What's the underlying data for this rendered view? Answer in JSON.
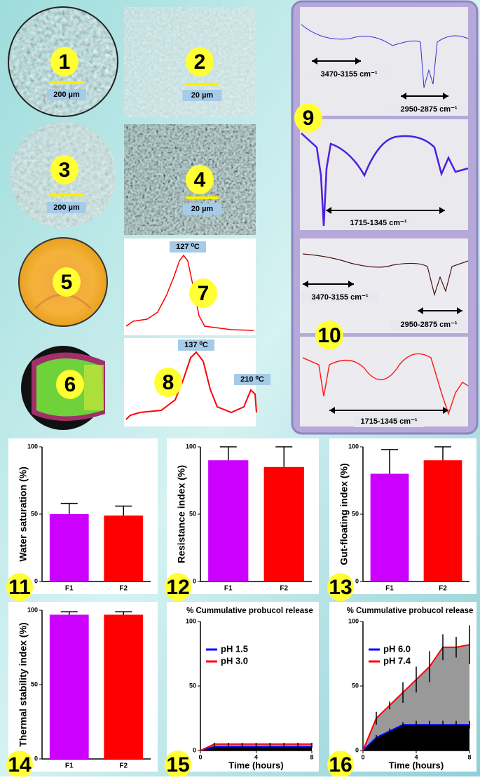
{
  "images": [
    {
      "label": "1",
      "scale": "200 µm"
    },
    {
      "label": "2",
      "scale": "20 µm"
    },
    {
      "label": "3",
      "scale": "200 µm"
    },
    {
      "label": "4",
      "scale": "20 µm"
    },
    {
      "label": "5"
    },
    {
      "label": "6"
    }
  ],
  "dsc": [
    {
      "label": "7",
      "peaks": [
        "127 ⁰C"
      ]
    },
    {
      "label": "8",
      "peaks": [
        "137 ⁰C",
        "210 ⁰C"
      ]
    }
  ],
  "ftir": [
    {
      "label": "9",
      "bands": [
        "3470-3155 cm⁻¹",
        "2950-2875 cm⁻¹",
        "1715-1345 cm⁻¹"
      ]
    },
    {
      "label": "10",
      "bands": [
        "3470-3155 cm⁻¹",
        "2950-2875 cm⁻¹",
        "1715-1345 cm⁻¹"
      ]
    }
  ],
  "chart_data": [
    {
      "type": "bar",
      "label": "11",
      "ylabel": "Water saturation (%)",
      "categories": [
        "F1",
        "F2"
      ],
      "values": [
        50,
        49
      ],
      "errors": [
        8,
        7
      ],
      "colors": [
        "#cc00ff",
        "#ff0000"
      ],
      "ylim": [
        0,
        100
      ],
      "yticks": [
        0,
        50,
        100
      ]
    },
    {
      "type": "bar",
      "label": "12",
      "ylabel": "Resistance index (%)",
      "categories": [
        "F1",
        "F2"
      ],
      "values": [
        90,
        85
      ],
      "errors": [
        10,
        15
      ],
      "colors": [
        "#cc00ff",
        "#ff0000"
      ],
      "ylim": [
        0,
        100
      ],
      "yticks": [
        0,
        50,
        100
      ]
    },
    {
      "type": "bar",
      "label": "13",
      "ylabel": "Gut-floating index (%)",
      "categories": [
        "F1",
        "F2"
      ],
      "values": [
        80,
        90
      ],
      "errors": [
        18,
        10
      ],
      "colors": [
        "#cc00ff",
        "#ff0000"
      ],
      "ylim": [
        0,
        100
      ],
      "yticks": [
        0,
        50,
        100
      ]
    },
    {
      "type": "bar",
      "label": "14",
      "ylabel": "Thermal stability index (%)",
      "categories": [
        "F1",
        "F2"
      ],
      "values": [
        97,
        97
      ],
      "errors": [
        2,
        2
      ],
      "colors": [
        "#cc00ff",
        "#ff0000"
      ],
      "ylim": [
        0,
        100
      ],
      "yticks": [
        0,
        50,
        100
      ]
    },
    {
      "type": "line",
      "label": "15",
      "title": "% Cummulative probucol release",
      "xlabel": "Time (hours)",
      "x": [
        0,
        1,
        2,
        3,
        4,
        5,
        6,
        7,
        8
      ],
      "series": [
        {
          "name": "pH 1.5",
          "color": "#0000ff",
          "fill": "#000000",
          "values": [
            0,
            3,
            3,
            3,
            3,
            3,
            3,
            3,
            3
          ],
          "errors": [
            0,
            1,
            1,
            1,
            1,
            1,
            1,
            1,
            1
          ]
        },
        {
          "name": "pH 3.0",
          "color": "#ff0000",
          "fill": "#999999",
          "values": [
            0,
            5,
            5,
            5,
            5,
            5,
            5,
            5,
            5
          ],
          "errors": [
            0,
            1,
            1,
            1,
            1,
            1,
            1,
            1,
            1
          ]
        }
      ],
      "xlim": [
        0,
        8
      ],
      "xticks": [
        0,
        4,
        8
      ],
      "ylim": [
        0,
        100
      ],
      "yticks": [
        0,
        50,
        100
      ]
    },
    {
      "type": "line",
      "label": "16",
      "title": "% Cummulative probucol release",
      "xlabel": "Time (hours)",
      "x": [
        0,
        1,
        2,
        3,
        4,
        5,
        6,
        7,
        8
      ],
      "series": [
        {
          "name": "pH 6.0",
          "color": "#0000ff",
          "fill": "#000000",
          "values": [
            0,
            10,
            15,
            20,
            20,
            20,
            20,
            20,
            20
          ],
          "errors": [
            0,
            2,
            2,
            2,
            3,
            3,
            3,
            3,
            3
          ]
        },
        {
          "name": "pH 7.4",
          "color": "#ff0000",
          "fill": "#999999",
          "values": [
            0,
            25,
            35,
            45,
            55,
            65,
            80,
            80,
            82
          ],
          "errors": [
            0,
            5,
            3,
            8,
            10,
            12,
            10,
            8,
            15
          ]
        }
      ],
      "xlim": [
        0,
        8
      ],
      "xticks": [
        0,
        4,
        8
      ],
      "ylim": [
        0,
        100
      ],
      "yticks": [
        0,
        50,
        100
      ]
    }
  ]
}
